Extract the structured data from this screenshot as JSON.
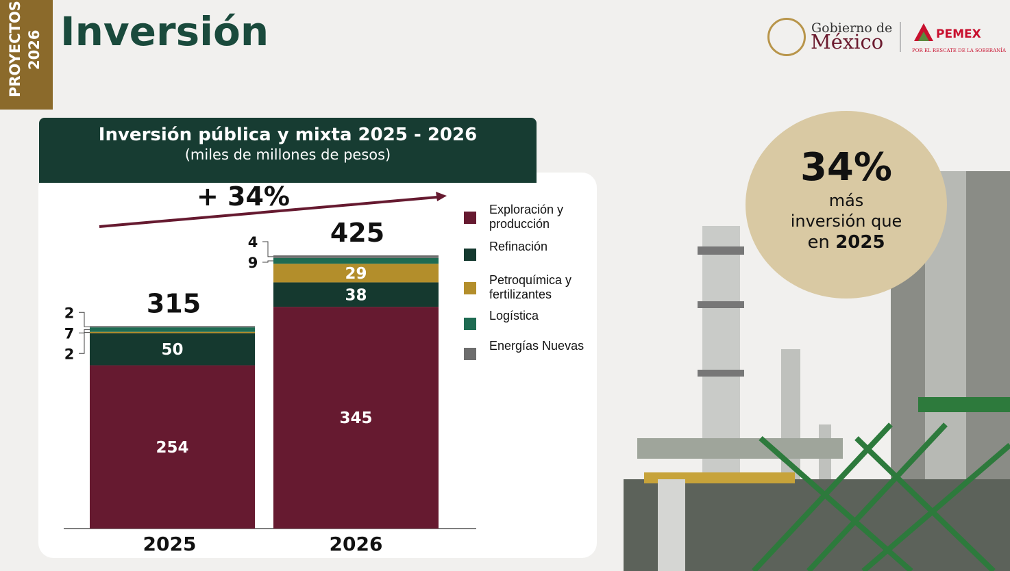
{
  "tab": {
    "line1": "PROYECTOS",
    "line2": "2026"
  },
  "header": {
    "title": "Inversión",
    "gov_top": "Gobierno de",
    "gov_bottom": "México",
    "pemex": "PEMEX",
    "pemex_tagline": "POR EL RESCATE DE LA SOBERANÍA"
  },
  "callout": {
    "big": "34%",
    "line1": "más",
    "line2": "inversión que",
    "line3_prefix": "en",
    "line3_bold": "2025"
  },
  "chart_data": {
    "type": "stacked-bar",
    "title": "Inversión pública y mixta 2025 - 2026",
    "subtitle": "(miles de millones de pesos)",
    "annotation": "+ 34%",
    "categories": [
      "2025",
      "2026"
    ],
    "totals": [
      315,
      425
    ],
    "series": [
      {
        "name": "Exploración y producción",
        "color": "#661a30",
        "values": [
          254,
          345
        ]
      },
      {
        "name": "Refinación",
        "color": "#15392f",
        "values": [
          50,
          38
        ]
      },
      {
        "name": "Petroquímica y fertilizantes",
        "color": "#b38e2b",
        "values": [
          2,
          29
        ]
      },
      {
        "name": "Logística",
        "color": "#1e6b52",
        "values": [
          7,
          9
        ]
      },
      {
        "name": "Energías Nuevas",
        "color": "#6d6d6d",
        "values": [
          2,
          4
        ]
      }
    ]
  }
}
